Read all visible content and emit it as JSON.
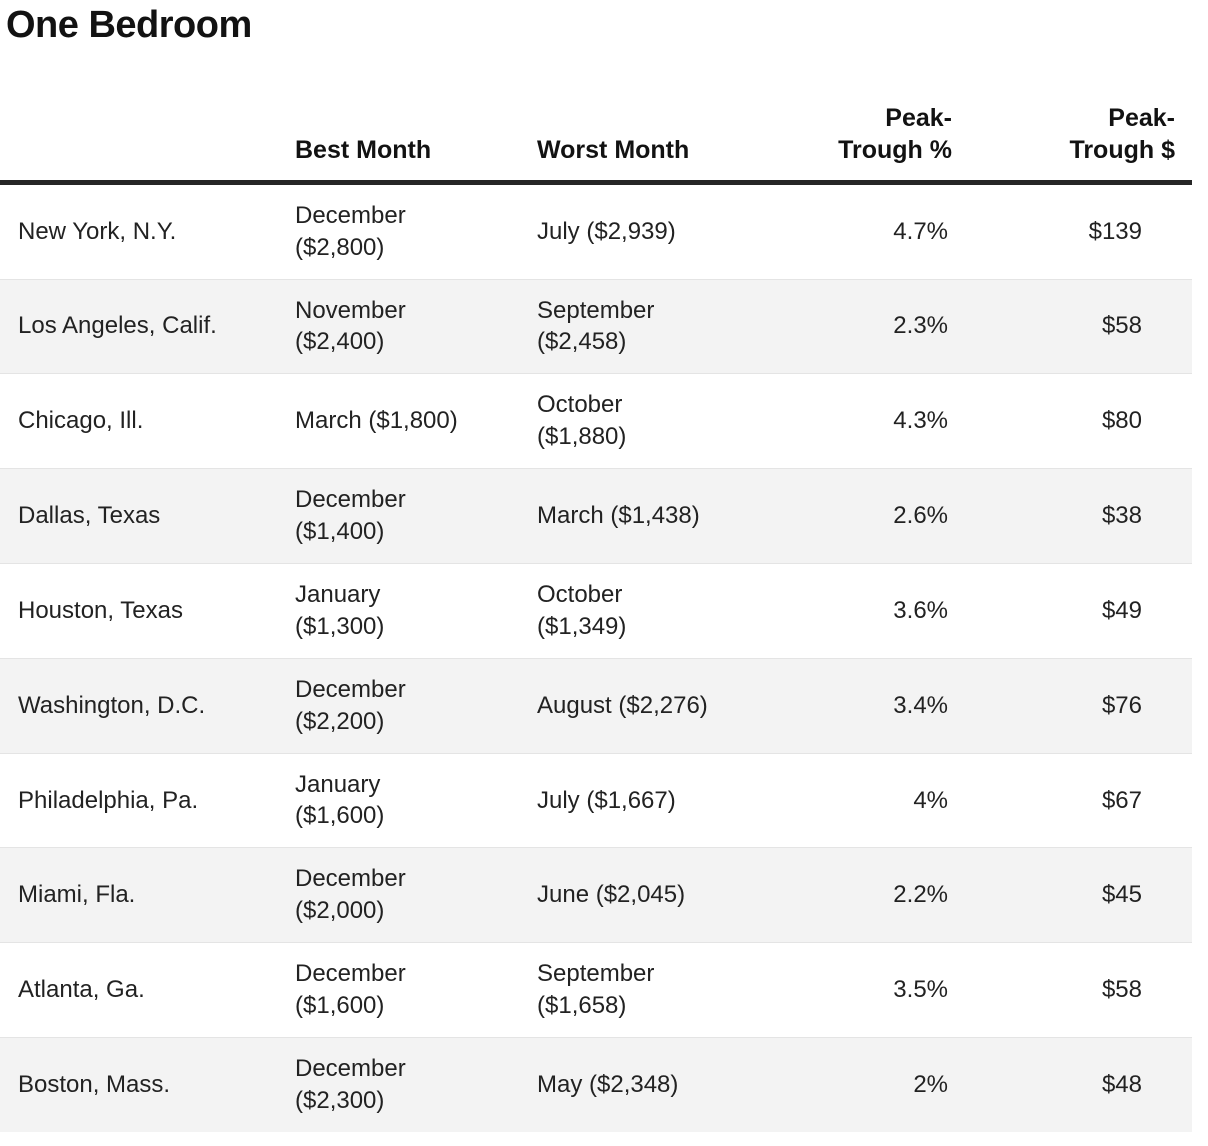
{
  "title": "One Bedroom",
  "colors": {
    "header_rule": "#262626",
    "zebra_row": "#f3f3f3",
    "row_separator": "#e4e4e4",
    "text": "#222222",
    "heading_text": "#121212",
    "background": "#ffffff"
  },
  "table": {
    "columns": [
      {
        "label": ""
      },
      {
        "label": "Best Month"
      },
      {
        "label": "Worst Month"
      },
      {
        "label": "Peak-\nTrough %"
      },
      {
        "label": "Peak-\nTrough $"
      }
    ],
    "rows": [
      {
        "city": "New York, N.Y.",
        "best": "December\n($2,800)",
        "worst": "July ($2,939)",
        "pct": "4.7%",
        "usd": "$139"
      },
      {
        "city": "Los Angeles, Calif.",
        "best": "November\n($2,400)",
        "worst": "September\n($2,458)",
        "pct": "2.3%",
        "usd": "$58"
      },
      {
        "city": "Chicago, Ill.",
        "best": "March ($1,800)",
        "worst": "October\n($1,880)",
        "pct": "4.3%",
        "usd": "$80"
      },
      {
        "city": "Dallas, Texas",
        "best": "December\n($1,400)",
        "worst": "March ($1,438)",
        "pct": "2.6%",
        "usd": "$38"
      },
      {
        "city": "Houston, Texas",
        "best": "January\n($1,300)",
        "worst": "October\n($1,349)",
        "pct": "3.6%",
        "usd": "$49"
      },
      {
        "city": "Washington, D.C.",
        "best": "December\n($2,200)",
        "worst": "August ($2,276)",
        "pct": "3.4%",
        "usd": "$76"
      },
      {
        "city": "Philadelphia, Pa.",
        "best": "January\n($1,600)",
        "worst": "July ($1,667)",
        "pct": "4%",
        "usd": "$67"
      },
      {
        "city": "Miami, Fla.",
        "best": "December\n($2,000)",
        "worst": "June ($2,045)",
        "pct": "2.2%",
        "usd": "$45"
      },
      {
        "city": "Atlanta, Ga.",
        "best": "December\n($1,600)",
        "worst": "September\n($1,658)",
        "pct": "3.5%",
        "usd": "$58"
      },
      {
        "city": "Boston, Mass.",
        "best": "December\n($2,300)",
        "worst": "May ($2,348)",
        "pct": "2%",
        "usd": "$48"
      }
    ]
  },
  "chart_data": {
    "type": "table",
    "title": "One Bedroom",
    "columns": [
      "",
      "Best Month",
      "Worst Month",
      "Peak-Trough %",
      "Peak-Trough $"
    ],
    "rows": [
      [
        "New York, N.Y.",
        "December ($2,800)",
        "July ($2,939)",
        "4.7%",
        "$139"
      ],
      [
        "Los Angeles, Calif.",
        "November ($2,400)",
        "September ($2,458)",
        "2.3%",
        "$58"
      ],
      [
        "Chicago, Ill.",
        "March ($1,800)",
        "October ($1,880)",
        "4.3%",
        "$80"
      ],
      [
        "Dallas, Texas",
        "December ($1,400)",
        "March ($1,438)",
        "2.6%",
        "$38"
      ],
      [
        "Houston, Texas",
        "January ($1,300)",
        "October ($1,349)",
        "3.6%",
        "$49"
      ],
      [
        "Washington, D.C.",
        "December ($2,200)",
        "August ($2,276)",
        "3.4%",
        "$76"
      ],
      [
        "Philadelphia, Pa.",
        "January ($1,600)",
        "July ($1,667)",
        "4%",
        "$67"
      ],
      [
        "Miami, Fla.",
        "December ($2,000)",
        "June ($2,045)",
        "2.2%",
        "$45"
      ],
      [
        "Atlanta, Ga.",
        "December ($1,600)",
        "September ($1,658)",
        "3.5%",
        "$58"
      ],
      [
        "Boston, Mass.",
        "December ($2,300)",
        "May ($2,348)",
        "2%",
        "$48"
      ]
    ]
  }
}
